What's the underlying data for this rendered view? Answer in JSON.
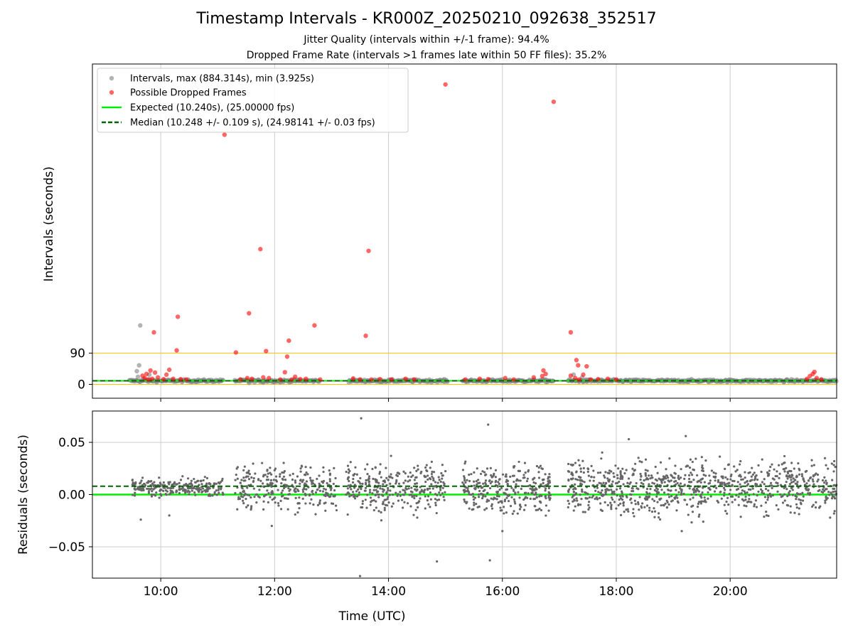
{
  "title": "Timestamp Intervals - KR000Z_20250210_092638_352517",
  "subtitle_1": "Jitter Quality (intervals within +/-1 frame): 94.4%",
  "subtitle_2": "Dropped Frame Rate (intervals >1 frames late within 50 FF files): 35.2%",
  "colors": {
    "intervals": "#808080",
    "dropped": "#ff0000",
    "expected": "#00ee00",
    "median": "#006400",
    "threshold": "#ffc000",
    "grid": "#cccccc"
  },
  "chart_data": [
    {
      "type": "scatter",
      "panel": "top",
      "ylabel": "Intervals (seconds)",
      "xlim": [
        8.8,
        21.87
      ],
      "ylim": [
        -40,
        924
      ],
      "yticks": [
        0,
        90
      ],
      "ytick_labels": [
        "0",
        "90"
      ],
      "xticks": [
        10,
        12,
        14,
        16,
        18,
        20
      ],
      "xtick_labels": [],
      "grid": "x-only",
      "legend_position": "top-left",
      "legend": [
        "Intervals, max (884.314s), min (3.925s)",
        "Possible Dropped Frames",
        "Expected (10.240s), (25.00000 fps)",
        "Median (10.248 +/- 0.109 s), (24.98141 +/- 0.03 fps)"
      ],
      "expected_value": 10.24,
      "median_value": 10.248,
      "threshold_upper": 90,
      "threshold_lower": 0,
      "normal_segments": [
        [
          9.45,
          11.1
        ],
        [
          11.3,
          12.8
        ],
        [
          13.3,
          15.05
        ],
        [
          15.3,
          16.9
        ],
        [
          17.15,
          21.87
        ]
      ],
      "normal_outliers": [
        [
          9.58,
          38
        ],
        [
          9.6,
          22
        ],
        [
          9.62,
          55
        ],
        [
          9.64,
          170
        ],
        [
          9.7,
          16
        ],
        [
          9.8,
          28
        ],
        [
          11.55,
          4
        ],
        [
          11.8,
          5
        ],
        [
          12.1,
          6
        ],
        [
          17.25,
          28
        ],
        [
          17.4,
          20
        ],
        [
          21.5,
          12
        ]
      ],
      "dropped_points": [
        [
          9.68,
          25
        ],
        [
          9.72,
          18
        ],
        [
          9.75,
          30
        ],
        [
          9.78,
          14
        ],
        [
          9.82,
          40
        ],
        [
          9.85,
          16
        ],
        [
          9.88,
          150
        ],
        [
          9.9,
          34
        ],
        [
          9.95,
          20
        ],
        [
          10.05,
          15
        ],
        [
          10.1,
          28
        ],
        [
          10.15,
          42
        ],
        [
          10.22,
          16
        ],
        [
          10.28,
          98
        ],
        [
          10.3,
          195
        ],
        [
          10.35,
          15
        ],
        [
          10.45,
          14
        ],
        [
          11.12,
          720
        ],
        [
          11.32,
          92
        ],
        [
          11.4,
          14
        ],
        [
          11.52,
          18
        ],
        [
          11.55,
          205
        ],
        [
          11.6,
          16
        ],
        [
          11.75,
          390
        ],
        [
          11.8,
          20
        ],
        [
          11.85,
          96
        ],
        [
          11.9,
          18
        ],
        [
          12.1,
          14
        ],
        [
          12.18,
          35
        ],
        [
          12.22,
          80
        ],
        [
          12.25,
          126
        ],
        [
          12.3,
          14
        ],
        [
          12.36,
          22
        ],
        [
          12.45,
          15
        ],
        [
          12.55,
          16
        ],
        [
          12.7,
          170
        ],
        [
          12.8,
          14
        ],
        [
          13.38,
          17
        ],
        [
          13.5,
          14
        ],
        [
          13.6,
          140
        ],
        [
          13.65,
          385
        ],
        [
          13.7,
          14
        ],
        [
          13.85,
          15
        ],
        [
          14.05,
          14
        ],
        [
          14.3,
          16
        ],
        [
          14.45,
          14
        ],
        [
          15.0,
          865
        ],
        [
          15.35,
          14
        ],
        [
          15.6,
          16
        ],
        [
          15.75,
          15
        ],
        [
          16.05,
          18
        ],
        [
          16.2,
          14
        ],
        [
          16.55,
          20
        ],
        [
          16.7,
          24
        ],
        [
          16.72,
          40
        ],
        [
          16.76,
          30
        ],
        [
          16.9,
          815
        ],
        [
          17.2,
          25
        ],
        [
          17.2,
          150
        ],
        [
          17.28,
          18
        ],
        [
          17.3,
          70
        ],
        [
          17.33,
          55
        ],
        [
          17.35,
          14
        ],
        [
          17.42,
          28
        ],
        [
          17.48,
          52
        ],
        [
          17.55,
          14
        ],
        [
          17.68,
          15
        ],
        [
          17.85,
          16
        ],
        [
          18.0,
          14
        ],
        [
          21.35,
          16
        ],
        [
          21.4,
          24
        ],
        [
          21.45,
          30
        ],
        [
          21.48,
          36
        ],
        [
          21.52,
          18
        ],
        [
          21.6,
          14
        ]
      ]
    },
    {
      "type": "scatter",
      "panel": "bottom",
      "xlabel": "Time (UTC)",
      "ylabel": "Residuals (seconds)",
      "xlim": [
        8.8,
        21.87
      ],
      "ylim": [
        -0.08,
        0.08
      ],
      "yticks": [
        -0.05,
        0.0,
        0.05
      ],
      "ytick_labels": [
        "−0.05",
        "0.00",
        "0.05"
      ],
      "xticks": [
        10,
        12,
        14,
        16,
        18,
        20
      ],
      "xtick_labels": [
        "10:00",
        "12:00",
        "14:00",
        "16:00",
        "18:00",
        "20:00"
      ],
      "grid": "both",
      "expected_value": 0.0,
      "median_value": 0.008,
      "residual_segments": [
        {
          "start": 9.5,
          "end": 11.1,
          "center": 0.007,
          "spread": 0.008,
          "count": 260
        },
        {
          "start": 11.3,
          "end": 13.1,
          "center": 0.007,
          "spread": 0.02,
          "count": 300
        },
        {
          "start": 13.25,
          "end": 15.0,
          "center": 0.007,
          "spread": 0.022,
          "count": 320
        },
        {
          "start": 15.3,
          "end": 16.85,
          "center": 0.006,
          "spread": 0.024,
          "count": 300
        },
        {
          "start": 17.15,
          "end": 21.87,
          "center": 0.007,
          "spread": 0.025,
          "count": 900
        }
      ],
      "residual_outliers": [
        [
          13.52,
          0.073
        ],
        [
          15.75,
          0.067
        ],
        [
          13.5,
          -0.078
        ],
        [
          14.85,
          -0.064
        ],
        [
          15.78,
          -0.063
        ],
        [
          18.22,
          0.053
        ],
        [
          19.22,
          0.056
        ],
        [
          9.65,
          -0.024
        ],
        [
          10.15,
          -0.02
        ],
        [
          11.95,
          -0.03
        ],
        [
          16.0,
          -0.035
        ],
        [
          19.15,
          -0.035
        ]
      ]
    }
  ]
}
